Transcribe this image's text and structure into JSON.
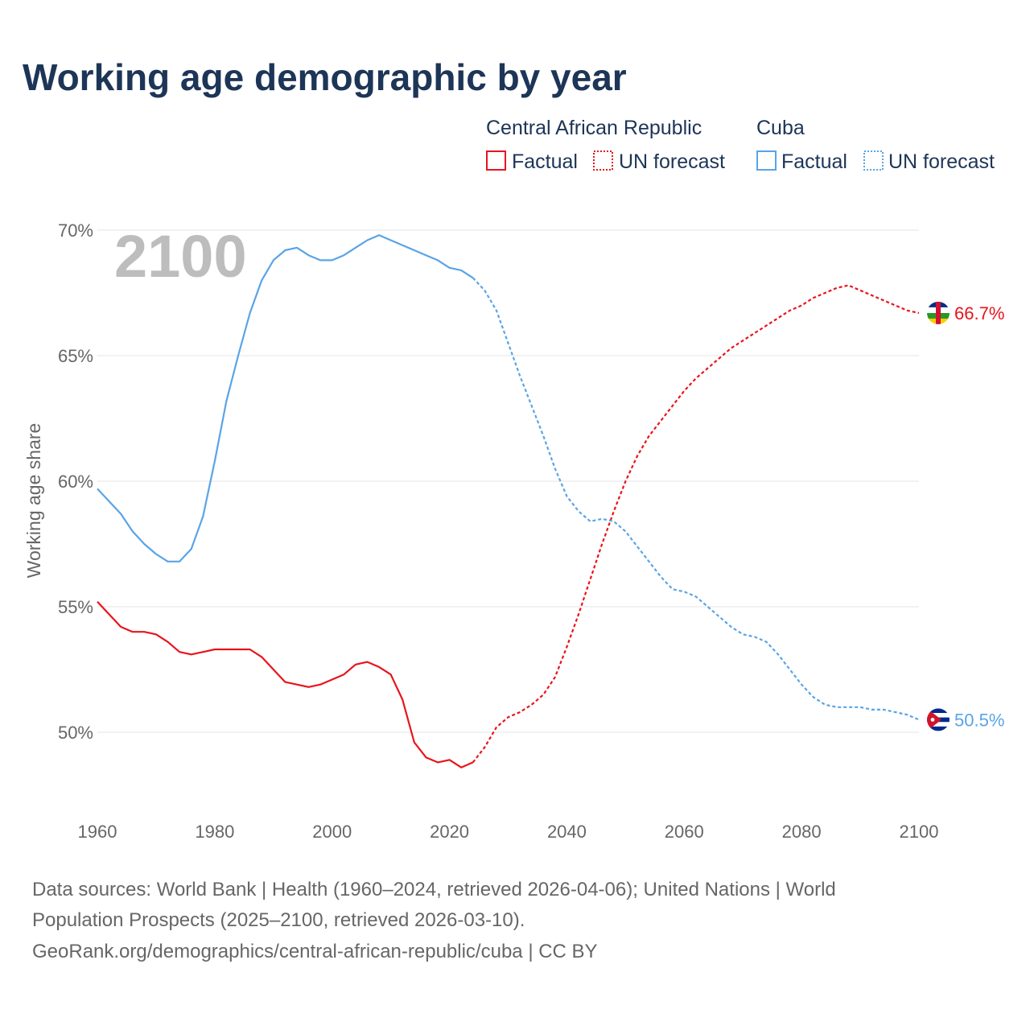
{
  "title": "Working age demographic by year",
  "year_badge": "2100",
  "legend": {
    "group1": {
      "name": "Central African Republic",
      "factual": "Factual",
      "forecast": "UN forecast"
    },
    "group2": {
      "name": "Cuba",
      "factual": "Factual",
      "forecast": "UN forecast"
    }
  },
  "source": {
    "line1": "Data sources: World Bank | Health (1960–2024, retrieved 2026-04-06); United Nations | World",
    "line2": "Population Prospects (2025–2100, retrieved 2026-03-10).",
    "line3": "GeoRank.org/demographics/central-african-republic/cuba | CC BY"
  },
  "chart_data": {
    "type": "line",
    "title": "Working age demographic by year",
    "xlabel": "",
    "ylabel": "Working age share",
    "xlim": [
      1960,
      2100
    ],
    "ylim": [
      47,
      71
    ],
    "xticks": [
      1960,
      1980,
      2000,
      2020,
      2040,
      2060,
      2080,
      2100
    ],
    "yticks": [
      50,
      55,
      60,
      65,
      70
    ],
    "ytick_labels": [
      "50%",
      "55%",
      "60%",
      "65%",
      "70%"
    ],
    "grid": true,
    "legend_position": "top-right",
    "forecast_start": 2024,
    "series": [
      {
        "name": "Central African Republic",
        "color": "#e8141c",
        "end_label": "66.7%",
        "flag": "central-african-republic-flag",
        "points": [
          [
            1960,
            55.2
          ],
          [
            1962,
            54.7
          ],
          [
            1964,
            54.2
          ],
          [
            1966,
            54.0
          ],
          [
            1968,
            54.0
          ],
          [
            1970,
            53.9
          ],
          [
            1972,
            53.6
          ],
          [
            1974,
            53.2
          ],
          [
            1976,
            53.1
          ],
          [
            1978,
            53.2
          ],
          [
            1980,
            53.3
          ],
          [
            1982,
            53.3
          ],
          [
            1984,
            53.3
          ],
          [
            1986,
            53.3
          ],
          [
            1988,
            53.0
          ],
          [
            1990,
            52.5
          ],
          [
            1992,
            52.0
          ],
          [
            1994,
            51.9
          ],
          [
            1996,
            51.8
          ],
          [
            1998,
            51.9
          ],
          [
            2000,
            52.1
          ],
          [
            2002,
            52.3
          ],
          [
            2004,
            52.7
          ],
          [
            2006,
            52.8
          ],
          [
            2008,
            52.6
          ],
          [
            2010,
            52.3
          ],
          [
            2012,
            51.3
          ],
          [
            2014,
            49.6
          ],
          [
            2016,
            49.0
          ],
          [
            2018,
            48.8
          ],
          [
            2020,
            48.9
          ],
          [
            2022,
            48.6
          ],
          [
            2024,
            48.8
          ],
          [
            2026,
            49.4
          ],
          [
            2028,
            50.2
          ],
          [
            2030,
            50.6
          ],
          [
            2032,
            50.8
          ],
          [
            2034,
            51.1
          ],
          [
            2036,
            51.5
          ],
          [
            2038,
            52.2
          ],
          [
            2040,
            53.4
          ],
          [
            2042,
            54.7
          ],
          [
            2044,
            56.1
          ],
          [
            2046,
            57.5
          ],
          [
            2048,
            58.8
          ],
          [
            2050,
            60.0
          ],
          [
            2052,
            61.0
          ],
          [
            2054,
            61.8
          ],
          [
            2056,
            62.4
          ],
          [
            2058,
            63.0
          ],
          [
            2060,
            63.6
          ],
          [
            2062,
            64.1
          ],
          [
            2064,
            64.5
          ],
          [
            2066,
            64.9
          ],
          [
            2068,
            65.3
          ],
          [
            2070,
            65.6
          ],
          [
            2072,
            65.9
          ],
          [
            2074,
            66.2
          ],
          [
            2076,
            66.5
          ],
          [
            2078,
            66.8
          ],
          [
            2080,
            67.0
          ],
          [
            2082,
            67.3
          ],
          [
            2084,
            67.5
          ],
          [
            2086,
            67.7
          ],
          [
            2088,
            67.8
          ],
          [
            2090,
            67.6
          ],
          [
            2092,
            67.4
          ],
          [
            2094,
            67.2
          ],
          [
            2096,
            67.0
          ],
          [
            2098,
            66.8
          ],
          [
            2100,
            66.7
          ]
        ]
      },
      {
        "name": "Cuba",
        "color": "#5aa4e6",
        "end_label": "50.5%",
        "flag": "cuba-flag",
        "points": [
          [
            1960,
            59.7
          ],
          [
            1962,
            59.2
          ],
          [
            1964,
            58.7
          ],
          [
            1966,
            58.0
          ],
          [
            1968,
            57.5
          ],
          [
            1970,
            57.1
          ],
          [
            1972,
            56.8
          ],
          [
            1974,
            56.8
          ],
          [
            1976,
            57.3
          ],
          [
            1978,
            58.6
          ],
          [
            1980,
            60.8
          ],
          [
            1982,
            63.2
          ],
          [
            1984,
            65.0
          ],
          [
            1986,
            66.7
          ],
          [
            1988,
            68.0
          ],
          [
            1990,
            68.8
          ],
          [
            1992,
            69.2
          ],
          [
            1994,
            69.3
          ],
          [
            1996,
            69.0
          ],
          [
            1998,
            68.8
          ],
          [
            2000,
            68.8
          ],
          [
            2002,
            69.0
          ],
          [
            2004,
            69.3
          ],
          [
            2006,
            69.6
          ],
          [
            2008,
            69.8
          ],
          [
            2010,
            69.6
          ],
          [
            2012,
            69.4
          ],
          [
            2014,
            69.2
          ],
          [
            2016,
            69.0
          ],
          [
            2018,
            68.8
          ],
          [
            2020,
            68.5
          ],
          [
            2022,
            68.4
          ],
          [
            2024,
            68.1
          ],
          [
            2026,
            67.6
          ],
          [
            2028,
            66.8
          ],
          [
            2030,
            65.5
          ],
          [
            2032,
            64.2
          ],
          [
            2034,
            63.0
          ],
          [
            2036,
            61.8
          ],
          [
            2038,
            60.5
          ],
          [
            2040,
            59.4
          ],
          [
            2042,
            58.8
          ],
          [
            2044,
            58.4
          ],
          [
            2046,
            58.5
          ],
          [
            2048,
            58.4
          ],
          [
            2050,
            58.0
          ],
          [
            2052,
            57.4
          ],
          [
            2054,
            56.8
          ],
          [
            2056,
            56.2
          ],
          [
            2058,
            55.7
          ],
          [
            2060,
            55.6
          ],
          [
            2062,
            55.4
          ],
          [
            2064,
            55.0
          ],
          [
            2066,
            54.6
          ],
          [
            2068,
            54.2
          ],
          [
            2070,
            53.9
          ],
          [
            2072,
            53.8
          ],
          [
            2074,
            53.6
          ],
          [
            2076,
            53.1
          ],
          [
            2078,
            52.5
          ],
          [
            2080,
            51.9
          ],
          [
            2082,
            51.4
          ],
          [
            2084,
            51.1
          ],
          [
            2086,
            51.0
          ],
          [
            2088,
            51.0
          ],
          [
            2090,
            51.0
          ],
          [
            2092,
            50.9
          ],
          [
            2094,
            50.9
          ],
          [
            2096,
            50.8
          ],
          [
            2098,
            50.7
          ],
          [
            2100,
            50.5
          ]
        ]
      }
    ]
  }
}
